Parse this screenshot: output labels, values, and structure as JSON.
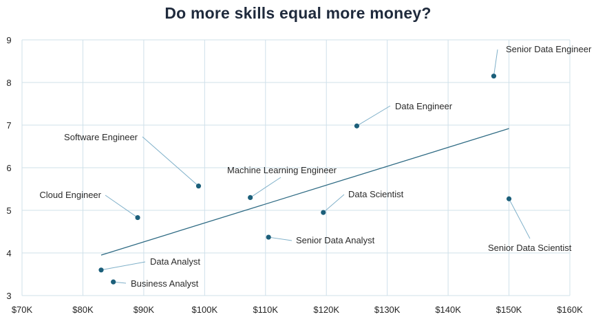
{
  "chart_data": {
    "type": "scatter",
    "title": "Do more skills equal more money?",
    "xlabel": "",
    "ylabel": "",
    "xlim": [
      70000,
      160000
    ],
    "ylim": [
      3,
      9
    ],
    "x_ticks": [
      70000,
      80000,
      90000,
      100000,
      110000,
      120000,
      130000,
      140000,
      150000,
      160000
    ],
    "x_tick_labels": [
      "$70K",
      "$80K",
      "$90K",
      "$100K",
      "$110K",
      "$120K",
      "$130K",
      "$140K",
      "$150K",
      "$160K"
    ],
    "y_ticks": [
      3,
      4,
      5,
      6,
      7,
      8,
      9
    ],
    "y_tick_labels": [
      "3",
      "4",
      "5",
      "6",
      "7",
      "8",
      "9"
    ],
    "grid": true,
    "legend": "none",
    "colors": {
      "point": "#1c5f7a",
      "trendline": "#2f6b84",
      "grid": "#cfe0ea",
      "leader": "#7fb0c9",
      "title": "#1f2a3c"
    },
    "points": [
      {
        "label": "Senior Data Engineer",
        "x": 147500,
        "y": 8.15
      },
      {
        "label": "Data Engineer",
        "x": 125000,
        "y": 6.98
      },
      {
        "label": "Software Engineer",
        "x": 99000,
        "y": 5.57
      },
      {
        "label": "Machine Learning Engineer",
        "x": 107500,
        "y": 5.3
      },
      {
        "label": "Data Scientist",
        "x": 119500,
        "y": 4.95
      },
      {
        "label": "Senior Data Scientist",
        "x": 150000,
        "y": 5.27
      },
      {
        "label": "Cloud Engineer",
        "x": 89000,
        "y": 4.83
      },
      {
        "label": "Senior Data Analyst",
        "x": 110500,
        "y": 4.37
      },
      {
        "label": "Data Analyst",
        "x": 83000,
        "y": 3.6
      },
      {
        "label": "Business Analyst",
        "x": 85000,
        "y": 3.32
      }
    ],
    "trendline": {
      "type": "linear",
      "x": [
        83000,
        150000
      ],
      "y": [
        3.95,
        6.92
      ]
    }
  }
}
